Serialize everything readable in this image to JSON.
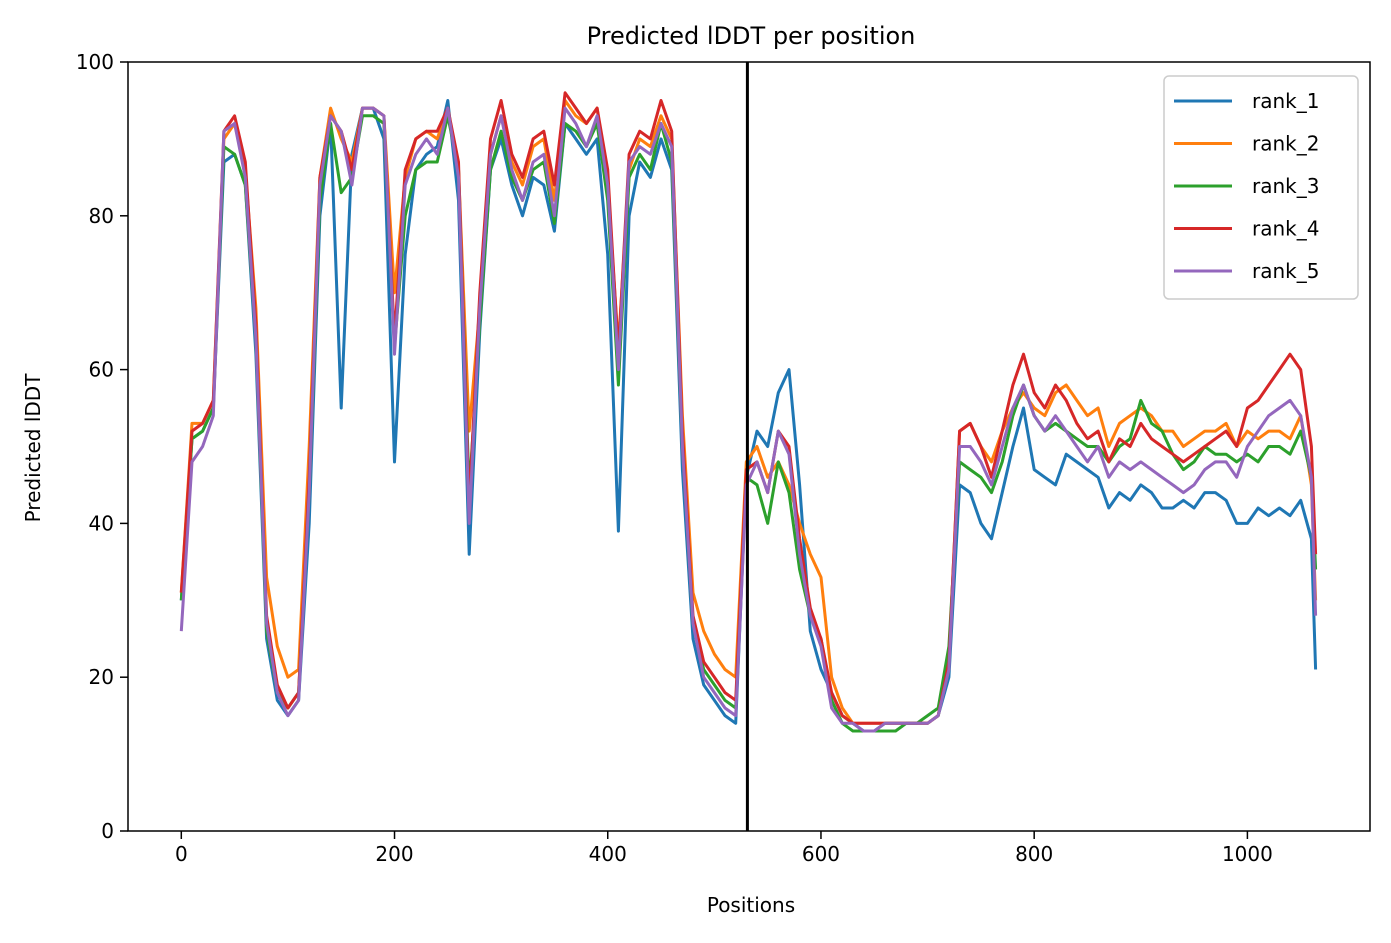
{
  "chart_data": {
    "type": "line",
    "title": "Predicted lDDT per position",
    "xlabel": "Positions",
    "ylabel": "Predicted lDDT",
    "xlim": [
      -50,
      1115
    ],
    "ylim": [
      0,
      100
    ],
    "xticks": [
      0,
      200,
      400,
      600,
      800,
      1000
    ],
    "yticks": [
      0,
      20,
      40,
      60,
      80,
      100
    ],
    "xtick_labels": [
      "0",
      "200",
      "400",
      "600",
      "800",
      "1000"
    ],
    "ytick_labels": [
      "0",
      "20",
      "40",
      "60",
      "80",
      "100"
    ],
    "grid": false,
    "legend_position": "top-right",
    "vline_x": 531,
    "vline_color": "#000000",
    "x": [
      0,
      10,
      20,
      30,
      40,
      50,
      60,
      70,
      80,
      90,
      100,
      110,
      120,
      130,
      140,
      150,
      160,
      170,
      180,
      190,
      200,
      210,
      220,
      230,
      240,
      250,
      260,
      270,
      280,
      290,
      300,
      310,
      320,
      330,
      340,
      350,
      360,
      370,
      380,
      390,
      400,
      410,
      420,
      430,
      440,
      450,
      460,
      470,
      480,
      490,
      500,
      510,
      520,
      530,
      540,
      550,
      560,
      570,
      580,
      590,
      600,
      610,
      620,
      630,
      640,
      650,
      660,
      670,
      680,
      690,
      700,
      710,
      720,
      730,
      740,
      750,
      760,
      770,
      780,
      790,
      800,
      810,
      820,
      830,
      840,
      850,
      860,
      870,
      880,
      890,
      900,
      910,
      920,
      930,
      940,
      950,
      960,
      970,
      980,
      990,
      1000,
      1010,
      1020,
      1030,
      1040,
      1050,
      1060,
      1064
    ],
    "series": [
      {
        "name": "rank_1",
        "color": "#1f77b4",
        "values": [
          30,
          51,
          52,
          55,
          87,
          88,
          84,
          62,
          25,
          17,
          15,
          17,
          40,
          80,
          92,
          55,
          88,
          94,
          94,
          90,
          48,
          75,
          86,
          88,
          89,
          95,
          82,
          36,
          65,
          86,
          90,
          84,
          80,
          85,
          84,
          78,
          92,
          90,
          88,
          90,
          75,
          39,
          80,
          87,
          85,
          90,
          86,
          47,
          25,
          19,
          17,
          15,
          14,
          46,
          52,
          50,
          57,
          60,
          45,
          26,
          21,
          18,
          15,
          14,
          13,
          13,
          14,
          14,
          14,
          14,
          14,
          15,
          20,
          45,
          44,
          40,
          38,
          44,
          50,
          55,
          47,
          46,
          45,
          49,
          48,
          47,
          46,
          42,
          44,
          43,
          45,
          44,
          42,
          42,
          43,
          42,
          44,
          44,
          43,
          40,
          40,
          42,
          41,
          42,
          41,
          43,
          38,
          21
        ]
      },
      {
        "name": "rank_2",
        "color": "#ff7f0e",
        "values": [
          31,
          53,
          53,
          56,
          90,
          92,
          86,
          68,
          33,
          24,
          20,
          21,
          50,
          85,
          94,
          90,
          87,
          94,
          94,
          93,
          70,
          85,
          90,
          91,
          90,
          94,
          86,
          52,
          68,
          88,
          93,
          87,
          84,
          89,
          90,
          82,
          95,
          93,
          92,
          94,
          84,
          63,
          86,
          90,
          89,
          93,
          90,
          54,
          31,
          26,
          23,
          21,
          20,
          48,
          50,
          46,
          48,
          45,
          40,
          36,
          33,
          20,
          16,
          14,
          14,
          14,
          14,
          14,
          14,
          14,
          14,
          15,
          22,
          52,
          53,
          50,
          48,
          52,
          55,
          57,
          55,
          54,
          57,
          58,
          56,
          54,
          55,
          50,
          53,
          54,
          55,
          54,
          52,
          52,
          50,
          51,
          52,
          52,
          53,
          50,
          52,
          51,
          52,
          52,
          51,
          54,
          45,
          30
        ]
      },
      {
        "name": "rank_3",
        "color": "#2ca02c",
        "values": [
          30,
          51,
          52,
          55,
          89,
          88,
          84,
          64,
          26,
          18,
          16,
          18,
          44,
          82,
          92,
          83,
          85,
          93,
          93,
          92,
          63,
          80,
          86,
          87,
          87,
          93,
          86,
          44,
          66,
          86,
          91,
          85,
          82,
          86,
          87,
          79,
          92,
          91,
          89,
          92,
          82,
          58,
          85,
          88,
          86,
          92,
          87,
          50,
          27,
          21,
          19,
          17,
          16,
          46,
          45,
          40,
          48,
          44,
          34,
          28,
          25,
          17,
          14,
          13,
          13,
          13,
          13,
          13,
          14,
          14,
          15,
          16,
          24,
          48,
          47,
          46,
          44,
          48,
          54,
          58,
          54,
          52,
          53,
          52,
          51,
          50,
          50,
          48,
          50,
          51,
          56,
          53,
          52,
          49,
          47,
          48,
          50,
          49,
          49,
          48,
          49,
          48,
          50,
          50,
          49,
          52,
          46,
          34
        ]
      },
      {
        "name": "rank_4",
        "color": "#d62728",
        "values": [
          31,
          52,
          53,
          56,
          91,
          93,
          87,
          66,
          28,
          19,
          16,
          18,
          46,
          85,
          93,
          91,
          86,
          94,
          94,
          93,
          64,
          86,
          90,
          91,
          91,
          94,
          87,
          42,
          70,
          90,
          95,
          88,
          85,
          90,
          91,
          84,
          96,
          94,
          92,
          94,
          86,
          62,
          88,
          91,
          90,
          95,
          91,
          52,
          28,
          22,
          20,
          18,
          17,
          47,
          48,
          44,
          52,
          50,
          38,
          29,
          25,
          18,
          15,
          14,
          14,
          14,
          14,
          14,
          14,
          14,
          14,
          15,
          22,
          52,
          53,
          50,
          46,
          52,
          58,
          62,
          57,
          55,
          58,
          56,
          53,
          51,
          52,
          48,
          51,
          50,
          53,
          51,
          50,
          49,
          48,
          49,
          50,
          51,
          52,
          50,
          55,
          56,
          58,
          60,
          62,
          60,
          50,
          36
        ]
      },
      {
        "name": "rank_5",
        "color": "#9467bd",
        "values": [
          26,
          48,
          50,
          54,
          91,
          92,
          85,
          64,
          27,
          18,
          15,
          17,
          44,
          84,
          93,
          91,
          84,
          94,
          94,
          93,
          62,
          84,
          88,
          90,
          88,
          94,
          85,
          40,
          68,
          88,
          93,
          86,
          82,
          87,
          88,
          80,
          94,
          92,
          89,
          93,
          84,
          60,
          87,
          89,
          88,
          92,
          89,
          50,
          27,
          20,
          18,
          16,
          15,
          45,
          48,
          44,
          52,
          49,
          36,
          28,
          24,
          16,
          14,
          14,
          13,
          13,
          14,
          14,
          14,
          14,
          14,
          15,
          21,
          50,
          50,
          48,
          45,
          50,
          55,
          58,
          54,
          52,
          54,
          52,
          50,
          48,
          50,
          46,
          48,
          47,
          48,
          47,
          46,
          45,
          44,
          45,
          47,
          48,
          48,
          46,
          50,
          52,
          54,
          55,
          56,
          54,
          46,
          28
        ]
      }
    ]
  }
}
